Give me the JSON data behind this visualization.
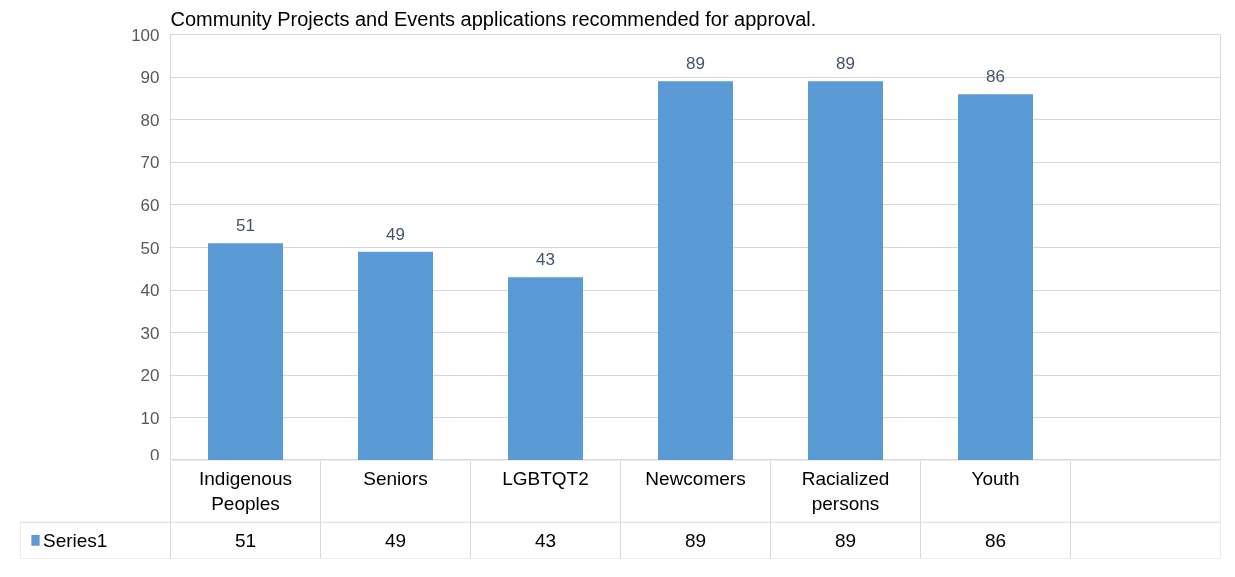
{
  "chart_data": {
    "type": "bar",
    "title": "Community Projects and Events applications recommended for approval.",
    "categories": [
      "Indigenous Peoples",
      "Seniors",
      "LGBTQT2",
      "Newcomers",
      "Racialized persons",
      "Youth",
      null
    ],
    "series": [
      {
        "name": "Series1",
        "color": "#5b9bd5",
        "values": [
          51,
          49,
          43,
          89,
          89,
          86,
          null
        ]
      }
    ],
    "ylim": [
      0,
      100
    ],
    "yticks": [
      0,
      10,
      20,
      30,
      40,
      50,
      60,
      70,
      80,
      90,
      100
    ],
    "grid": "y",
    "legend": "bottom",
    "data_labels": true,
    "annotations": [
      "51",
      "49",
      "43",
      "89",
      "89",
      "86"
    ]
  }
}
